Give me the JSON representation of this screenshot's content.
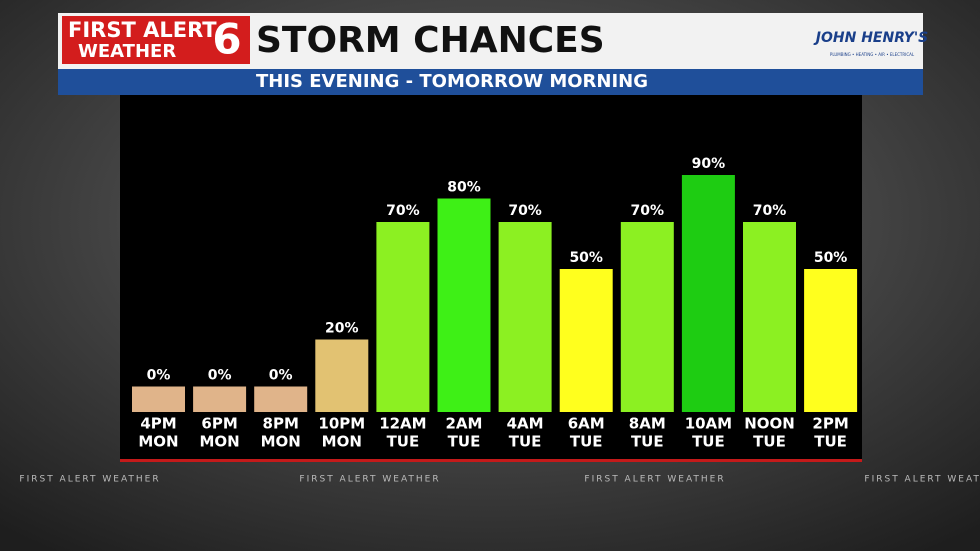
{
  "header": {
    "brand_top": "FIRST ALERT",
    "brand_bottom": "WEATHER",
    "brand_number": "6",
    "sponsor": "JOHN HENRY'S",
    "sponsor_tagline": "PLUMBING • HEATING • AIR • ELECTRICAL",
    "watermarks": [
      "FIRST ALERT WEATHER",
      "FIRST ALERT WEATHER",
      "FIRST ALERT WEATHER",
      "FIRST ALERT WEATHER"
    ]
  },
  "chart_data": {
    "type": "bar",
    "title": "STORM CHANCES",
    "subtitle": "THIS EVENING  -  TOMORROW MORNING",
    "categories": [
      [
        "4PM",
        "MON"
      ],
      [
        "6PM",
        "MON"
      ],
      [
        "8PM",
        "MON"
      ],
      [
        "10PM",
        "MON"
      ],
      [
        "12AM",
        "TUE"
      ],
      [
        "2AM",
        "TUE"
      ],
      [
        "4AM",
        "TUE"
      ],
      [
        "6AM",
        "TUE"
      ],
      [
        "8AM",
        "TUE"
      ],
      [
        "10AM",
        "TUE"
      ],
      [
        "NOON",
        "TUE"
      ],
      [
        "2PM",
        "TUE"
      ]
    ],
    "values": [
      0,
      0,
      0,
      20,
      70,
      80,
      70,
      50,
      70,
      90,
      70,
      50
    ],
    "value_labels": [
      "0%",
      "0%",
      "0%",
      "20%",
      "70%",
      "80%",
      "70%",
      "50%",
      "70%",
      "90%",
      "70%",
      "50%"
    ],
    "colors": [
      "#e0b48a",
      "#e0b48a",
      "#e0b48a",
      "#e2c272",
      "#8cf022",
      "#3ef016",
      "#8cf022",
      "#ffff1e",
      "#8cf022",
      "#1ecc12",
      "#8cf022",
      "#ffff1e"
    ],
    "ylim": [
      0,
      100
    ]
  }
}
